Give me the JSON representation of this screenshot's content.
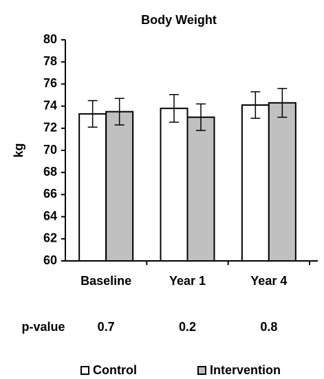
{
  "chart_data": {
    "type": "bar",
    "title": "Body Weight",
    "y_label": "kg",
    "categories": [
      "Baseline",
      "Year 1",
      "Year 4"
    ],
    "series": [
      {
        "name": "Control",
        "color": "#ffffff",
        "values": [
          73.3,
          73.8,
          74.1
        ],
        "errors": [
          1.2,
          1.25,
          1.2
        ]
      },
      {
        "name": "Intervention",
        "color": "#c0c0c0",
        "values": [
          73.5,
          73.0,
          74.3
        ],
        "errors": [
          1.2,
          1.2,
          1.3
        ]
      }
    ],
    "ylim": [
      60,
      80
    ],
    "yticks": [
      60,
      62,
      64,
      66,
      68,
      70,
      72,
      74,
      76,
      78,
      80
    ],
    "grid": false,
    "p_value_label": "p-value",
    "p_values": [
      0.7,
      0.2,
      0.8
    ]
  }
}
